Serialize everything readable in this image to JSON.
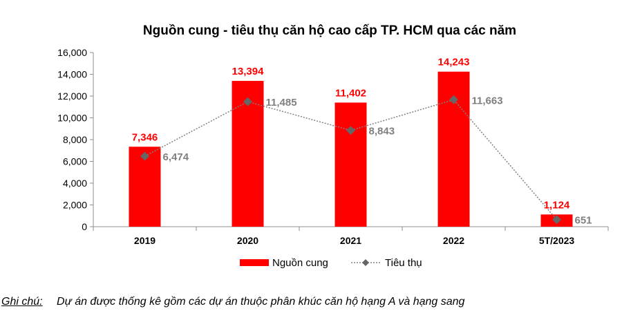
{
  "chart_data": {
    "type": "bar",
    "title": "Nguồn cung - tiêu thụ căn hộ cao cấp TP. HCM qua các năm",
    "categories": [
      "2019",
      "2020",
      "2021",
      "2022",
      "5T/2023"
    ],
    "ylim": [
      0,
      16000
    ],
    "yticks": [
      0,
      2000,
      4000,
      6000,
      8000,
      10000,
      12000,
      14000,
      16000
    ],
    "ytick_labels": [
      "0",
      "2,000",
      "4,000",
      "6,000",
      "8,000",
      "10,000",
      "12,000",
      "14,000",
      "16,000"
    ],
    "grid": false,
    "legend_position": "bottom",
    "series": [
      {
        "name": "Nguồn cung",
        "type": "bar",
        "color": "#ff0000",
        "values": [
          7346,
          13394,
          11402,
          14243,
          1124
        ],
        "labels": [
          "7,346",
          "13,394",
          "11,402",
          "14,243",
          "1,124"
        ],
        "label_color": "#ff0000"
      },
      {
        "name": "Tiêu thụ",
        "type": "line",
        "style": "dotted",
        "marker": "diamond",
        "color": "#808080",
        "values": [
          6474,
          11485,
          8843,
          11663,
          651
        ],
        "labels": [
          "6,474",
          "11,485",
          "8,843",
          "11,663",
          "651"
        ],
        "label_color": "#7f7f7f"
      }
    ]
  },
  "note": {
    "label": "Ghi chú:",
    "text": "Dự án được thống kê gồm các dự án thuộc phân khúc căn hộ hạng A và hạng sang"
  }
}
